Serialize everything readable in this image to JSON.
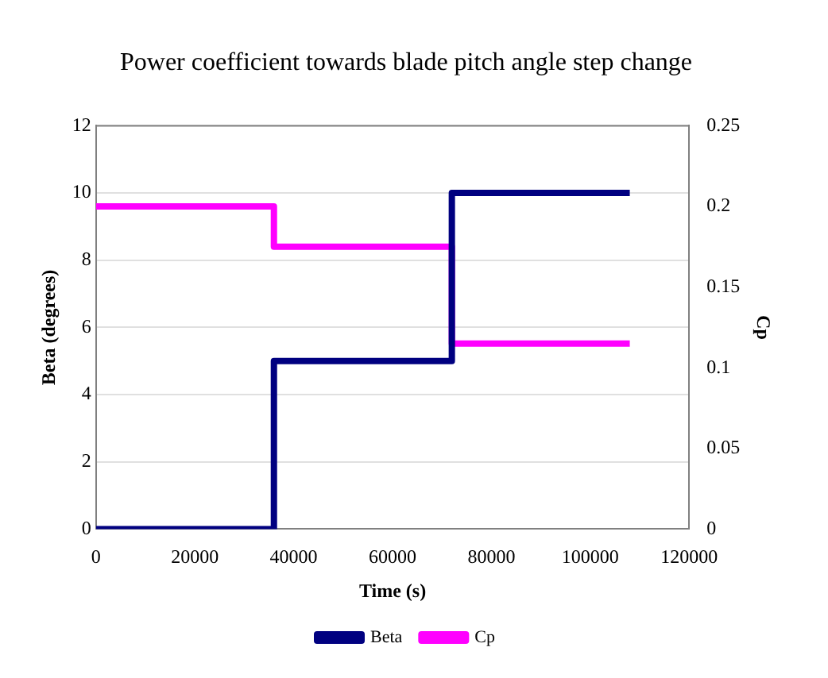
{
  "chart_data": {
    "type": "step",
    "title": "Power coefficient towards blade pitch angle step change",
    "xlabel": "Time (s)",
    "ylabel": "Beta (degrees)",
    "y2label": "Cp",
    "x": [
      0,
      36000,
      72000,
      108000
    ],
    "series": [
      {
        "name": "Beta",
        "color": "#000080",
        "values": [
          0,
          5,
          10,
          10
        ]
      },
      {
        "name": "Cp",
        "color": "#ff00ff",
        "values": [
          0.2,
          0.175,
          0.115,
          0.115
        ],
        "axis": "y2"
      }
    ],
    "xlim": [
      0,
      120000
    ],
    "xticks": [
      0,
      20000,
      40000,
      60000,
      80000,
      100000,
      120000
    ],
    "ylim": [
      0,
      12
    ],
    "yticks": [
      0,
      2,
      4,
      6,
      8,
      10,
      12
    ],
    "y2lim": [
      0,
      0.25
    ],
    "y2ticks": [
      0,
      0.05,
      0.1,
      0.15,
      0.2,
      0.25
    ],
    "grid": "y",
    "legend": "bottom",
    "marker": "none",
    "line_style": "solid"
  }
}
